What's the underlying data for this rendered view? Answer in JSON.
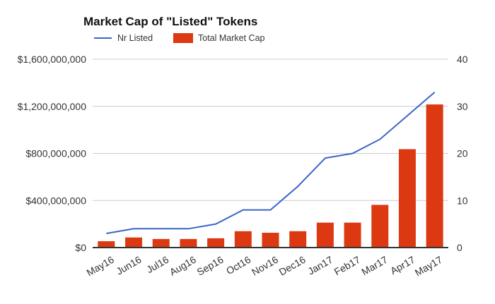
{
  "chart_data": {
    "type": "bar+line",
    "title": "Market Cap of \"Listed\" Tokens",
    "categories": [
      "May16",
      "Jun16",
      "Jul16",
      "Aug16",
      "Sep16",
      "Oct16",
      "Nov16",
      "Dec16",
      "Jan17",
      "Feb17",
      "Mar17",
      "Apr17",
      "May17"
    ],
    "series": [
      {
        "name": "Nr Listed",
        "type": "line",
        "axis": "right",
        "color": "#3b64c8",
        "values": [
          3,
          4,
          4,
          4,
          5,
          8,
          8,
          13,
          19,
          20,
          23,
          28,
          33
        ]
      },
      {
        "name": "Total Market Cap",
        "type": "bar",
        "axis": "left",
        "color": "#dc3912",
        "values": [
          48000000,
          80000000,
          67000000,
          67000000,
          73000000,
          133000000,
          120000000,
          133000000,
          206000000,
          206000000,
          357000000,
          830000000,
          1210000000
        ]
      }
    ],
    "left_axis": {
      "ylim": [
        0,
        1600000000
      ],
      "ticks": [
        "$0",
        "$400,000,000",
        "$800,000,000",
        "$1,200,000,000",
        "$1,600,000,000"
      ]
    },
    "right_axis": {
      "ylim": [
        0,
        40
      ],
      "ticks": [
        "0",
        "10",
        "20",
        "30",
        "40"
      ]
    },
    "grid": true,
    "legend_position": "top-left"
  }
}
